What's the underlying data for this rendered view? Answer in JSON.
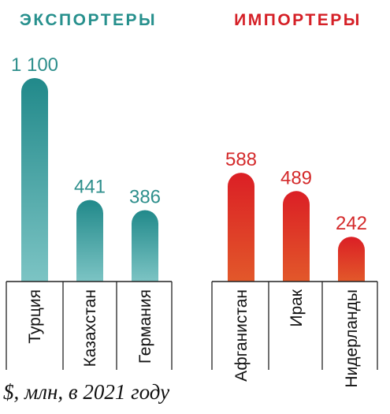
{
  "chart_data": {
    "type": "bar",
    "unit_note": "$, млн, в 2021 году",
    "groups": [
      {
        "title": "ЭКСПОРТЕРЫ",
        "title_color": "#27908d",
        "value_color": "#2e8f8c",
        "bar_color_top": "#21898a",
        "bar_color_bottom": "#7cc4c4",
        "categories": [
          "Турция",
          "Казахстан",
          "Германия"
        ],
        "values": [
          1100,
          441,
          386
        ],
        "value_labels": [
          "1 100",
          "441",
          "386"
        ]
      },
      {
        "title": "ИМПОРТЕРЫ",
        "title_color": "#d52027",
        "value_color": "#d42a2b",
        "bar_color_top": "#db1f25",
        "bar_color_bottom": "#e2582a",
        "categories": [
          "Афганистан",
          "Ирак",
          "Нидерланды"
        ],
        "values": [
          588,
          489,
          242
        ],
        "value_labels": [
          "588",
          "489",
          "242"
        ]
      }
    ]
  }
}
